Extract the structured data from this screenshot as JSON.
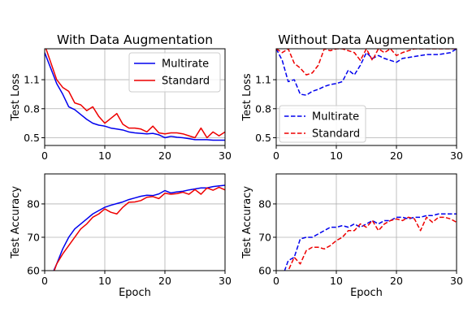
{
  "chart_data": [
    {
      "type": "line",
      "title": "With Data Augmentation",
      "xlabel": "",
      "ylabel": "Test Loss",
      "xlim": [
        0,
        30
      ],
      "ylim": [
        0.42,
        1.42
      ],
      "xticks": [
        "0",
        "10",
        "20",
        "30"
      ],
      "yticks": [
        "0.5",
        "0.8",
        "1.1"
      ],
      "grid": true,
      "legend": "upper right",
      "linestyle": "solid",
      "series": [
        {
          "name": "Multirate",
          "color": "#0000ee",
          "x": [
            0,
            1,
            2,
            3,
            4,
            5,
            6,
            7,
            8,
            9,
            10,
            11,
            12,
            13,
            14,
            15,
            16,
            17,
            18,
            19,
            20,
            21,
            22,
            23,
            24,
            25,
            26,
            27,
            28,
            29,
            30
          ],
          "y": [
            1.38,
            1.22,
            1.06,
            0.95,
            0.82,
            0.79,
            0.74,
            0.69,
            0.65,
            0.63,
            0.62,
            0.6,
            0.59,
            0.58,
            0.56,
            0.55,
            0.545,
            0.54,
            0.545,
            0.53,
            0.5,
            0.515,
            0.505,
            0.5,
            0.49,
            0.48,
            0.48,
            0.48,
            0.475,
            0.475,
            0.475
          ]
        },
        {
          "name": "Standard",
          "color": "#ee0000",
          "x": [
            0,
            1,
            2,
            3,
            4,
            5,
            6,
            7,
            8,
            9,
            10,
            11,
            12,
            13,
            14,
            15,
            16,
            17,
            18,
            19,
            20,
            21,
            22,
            23,
            24,
            25,
            26,
            27,
            28,
            29,
            30
          ],
          "y": [
            1.46,
            1.28,
            1.1,
            1.02,
            0.98,
            0.86,
            0.84,
            0.78,
            0.82,
            0.72,
            0.65,
            0.7,
            0.75,
            0.64,
            0.6,
            0.6,
            0.59,
            0.56,
            0.62,
            0.55,
            0.54,
            0.55,
            0.55,
            0.54,
            0.52,
            0.5,
            0.6,
            0.5,
            0.56,
            0.52,
            0.56
          ]
        }
      ]
    },
    {
      "type": "line",
      "title": "Without Data Augmentation",
      "xlabel": "",
      "ylabel": "Test Loss",
      "xlim": [
        0,
        30
      ],
      "ylim": [
        0.42,
        1.42
      ],
      "xticks": [
        "0",
        "10",
        "20",
        "30"
      ],
      "yticks": [
        "0.5",
        "0.8",
        "1.1"
      ],
      "grid": true,
      "legend": "lower left",
      "linestyle": "dashed",
      "series": [
        {
          "name": "Multirate",
          "color": "#0000ee",
          "x": [
            0,
            1,
            2,
            3,
            4,
            5,
            6,
            7,
            8,
            9,
            10,
            11,
            12,
            13,
            14,
            15,
            16,
            17,
            18,
            19,
            20,
            21,
            22,
            23,
            24,
            25,
            26,
            27,
            28,
            29,
            30
          ],
          "y": [
            1.42,
            1.3,
            1.08,
            1.1,
            0.95,
            0.94,
            0.98,
            1.0,
            1.03,
            1.05,
            1.06,
            1.08,
            1.2,
            1.15,
            1.25,
            1.38,
            1.32,
            1.35,
            1.32,
            1.3,
            1.28,
            1.32,
            1.33,
            1.34,
            1.35,
            1.36,
            1.36,
            1.36,
            1.37,
            1.38,
            1.42
          ]
        },
        {
          "name": "Standard",
          "color": "#ee0000",
          "x": [
            0,
            1,
            2,
            3,
            4,
            5,
            6,
            7,
            8,
            9,
            10,
            11,
            12,
            13,
            14,
            15,
            16,
            17,
            18,
            19,
            20,
            21,
            22,
            23,
            24,
            25,
            26,
            27,
            28,
            29,
            30
          ],
          "y": [
            1.42,
            1.38,
            1.42,
            1.27,
            1.22,
            1.15,
            1.17,
            1.25,
            1.42,
            1.4,
            1.42,
            1.42,
            1.4,
            1.38,
            1.3,
            1.42,
            1.3,
            1.42,
            1.38,
            1.42,
            1.35,
            1.38,
            1.4,
            1.42,
            1.42,
            1.42,
            1.42,
            1.42,
            1.42,
            1.42,
            1.42
          ]
        }
      ]
    },
    {
      "type": "line",
      "title": "",
      "xlabel": "Epoch",
      "ylabel": "Test Accuracy",
      "xlim": [
        0,
        30
      ],
      "ylim": [
        60,
        89
      ],
      "xticks": [
        "0",
        "10",
        "20",
        "30"
      ],
      "yticks": [
        "60",
        "70",
        "80"
      ],
      "grid": true,
      "legend": "none",
      "linestyle": "solid",
      "series": [
        {
          "name": "Multirate",
          "color": "#0000ee",
          "x": [
            1,
            2,
            3,
            4,
            5,
            6,
            7,
            8,
            9,
            10,
            11,
            12,
            13,
            14,
            15,
            16,
            17,
            18,
            19,
            20,
            21,
            22,
            23,
            24,
            25,
            26,
            27,
            28,
            29,
            30
          ],
          "y": [
            58,
            62,
            66.5,
            70,
            72.5,
            74,
            75.5,
            77,
            78,
            79,
            79.6,
            80.1,
            80.6,
            81.3,
            81.8,
            82.3,
            82.6,
            82.5,
            83.0,
            84.0,
            83.3,
            83.6,
            83.8,
            84.2,
            84.5,
            84.8,
            84.8,
            85.2,
            85.4,
            85.6
          ]
        },
        {
          "name": "Standard",
          "color": "#ee0000",
          "x": [
            1,
            2,
            3,
            4,
            5,
            6,
            7,
            8,
            9,
            10,
            11,
            12,
            13,
            14,
            15,
            16,
            17,
            18,
            19,
            20,
            21,
            22,
            23,
            24,
            25,
            26,
            27,
            28,
            29,
            30
          ],
          "y": [
            57,
            62,
            65,
            67.5,
            70,
            72.5,
            74,
            76,
            77,
            78.5,
            77.5,
            77,
            79,
            80.5,
            80.6,
            81,
            82,
            82.2,
            81.6,
            83.2,
            82.9,
            83.1,
            83.5,
            82.9,
            84.3,
            82.9,
            84.8,
            84.1,
            85.0,
            84.2
          ]
        }
      ]
    },
    {
      "type": "line",
      "title": "",
      "xlabel": "Epoch",
      "ylabel": "Test Accuracy",
      "xlim": [
        0,
        30
      ],
      "ylim": [
        60,
        89
      ],
      "xticks": [
        "0",
        "10",
        "20",
        "30"
      ],
      "yticks": [
        "60",
        "70",
        "80"
      ],
      "grid": true,
      "legend": "none",
      "linestyle": "dashed",
      "series": [
        {
          "name": "Multirate",
          "color": "#0000ee",
          "x": [
            1,
            2,
            3,
            4,
            5,
            6,
            7,
            8,
            9,
            10,
            11,
            12,
            13,
            14,
            15,
            16,
            17,
            18,
            19,
            20,
            21,
            22,
            23,
            24,
            25,
            26,
            27,
            28,
            29,
            30
          ],
          "y": [
            58,
            63,
            64,
            69.5,
            70,
            70,
            71,
            72,
            73,
            73,
            73.5,
            73,
            74,
            73,
            74,
            75,
            74,
            75,
            75,
            76,
            76,
            75.5,
            76,
            76,
            76.5,
            76.5,
            77,
            77,
            77,
            77
          ]
        },
        {
          "name": "Standard",
          "color": "#ee0000",
          "x": [
            1,
            2,
            3,
            4,
            5,
            6,
            7,
            8,
            9,
            10,
            11,
            12,
            13,
            14,
            15,
            16,
            17,
            18,
            19,
            20,
            21,
            22,
            23,
            24,
            25,
            26,
            27,
            28,
            29,
            30
          ],
          "y": [
            55,
            60,
            64,
            62,
            66,
            67,
            67,
            66.5,
            67.5,
            69,
            70,
            72,
            72,
            74,
            73,
            75,
            72,
            74,
            75,
            75.5,
            75,
            76,
            75.5,
            72,
            76,
            74.5,
            76,
            76,
            75.5,
            74.5
          ]
        }
      ]
    }
  ]
}
